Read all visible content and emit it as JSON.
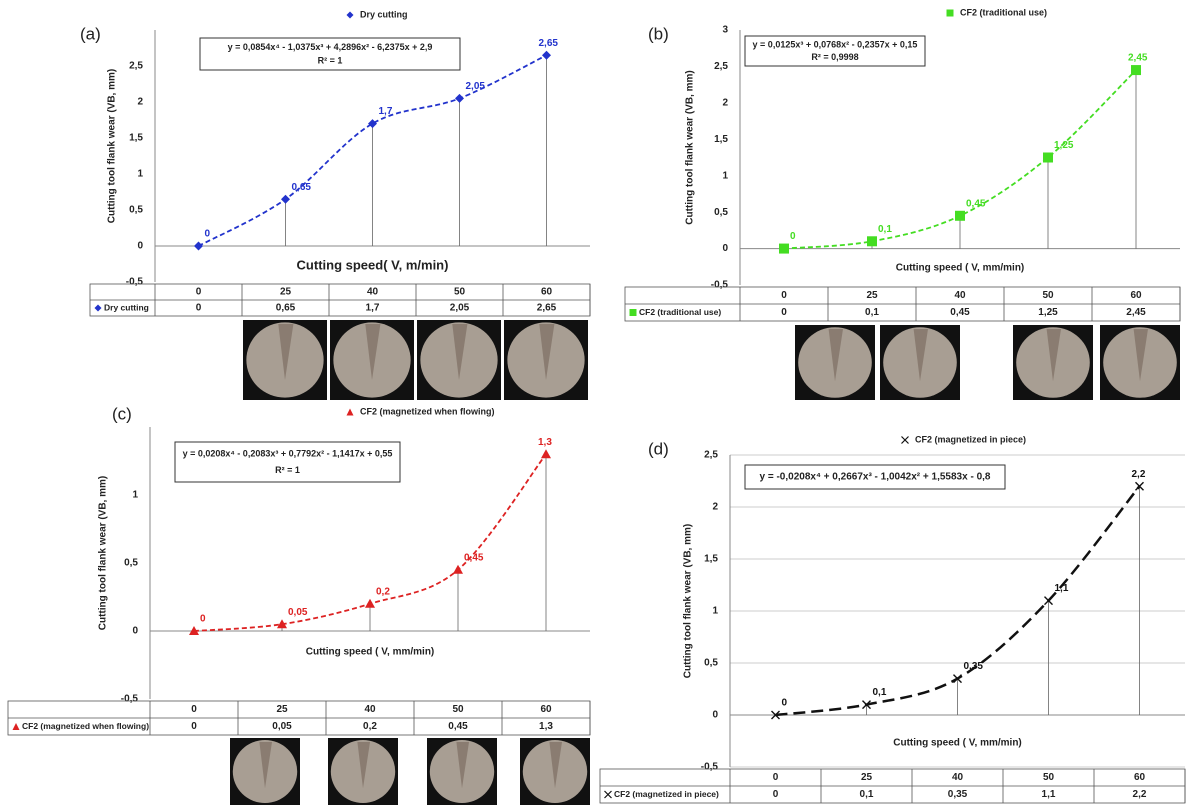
{
  "chart_data": [
    {
      "type": "line",
      "panel": "(a)",
      "title": "Dry cutting",
      "equation": "y = 0,0854x⁴ - 1,0375x³ + 4,2896x² - 6,2375x + 2,9",
      "r2": "R² = 1",
      "y_label": "Cutting tool flank wear (VB, mm)",
      "x_label": "Cutting speed( V, m/min)",
      "categories": [
        "0",
        "25",
        "40",
        "50",
        "60"
      ],
      "series": [
        {
          "name": "Dry cutting",
          "color": "#2233cc",
          "marker": "diamond",
          "values": [
            0,
            0.65,
            1.7,
            2.05,
            2.65
          ],
          "value_labels": [
            "0",
            "0,65",
            "1,7",
            "2,05",
            "2,65"
          ]
        }
      ],
      "ylim": [
        -0.5,
        3
      ],
      "yticks": [
        {
          "value": -0.5,
          "label": "-0,5"
        },
        0,
        {
          "value": 0.5,
          "label": "0,5"
        },
        1,
        {
          "value": 1.5,
          "label": "1,5"
        },
        2,
        {
          "value": 2.5,
          "label": "2,5"
        }
      ],
      "grid": false,
      "drop_lines": true
    },
    {
      "type": "line",
      "panel": "(b)",
      "title": "CF2 (traditional use)",
      "equation": "y = 0,0125x³ + 0,0768x² - 0,2357x + 0,15",
      "r2": "R² = 0,9998",
      "y_label": "Cutting tool flank wear (VB, mm)",
      "x_label": "Cutting speed ( V, mm/min)",
      "categories": [
        "0",
        "25",
        "40",
        "50",
        "60"
      ],
      "series": [
        {
          "name": "CF2 (traditional use)",
          "color": "#44dd22",
          "marker": "square",
          "values": [
            0,
            0.1,
            0.45,
            1.25,
            2.45
          ],
          "value_labels": [
            "0",
            "0,1",
            "0,45",
            "1,25",
            "2,45"
          ]
        }
      ],
      "ylim": [
        -0.5,
        3
      ],
      "yticks": [
        {
          "value": -0.5,
          "label": "-0,5"
        },
        0,
        {
          "value": 0.5,
          "label": "0,5"
        },
        1,
        {
          "value": 1.5,
          "label": "1,5"
        },
        2,
        {
          "value": 2.5,
          "label": "2,5"
        },
        3
      ],
      "grid": false,
      "drop_lines": true
    },
    {
      "type": "line",
      "panel": "(c)",
      "title": "CF2 (magnetized when flowing)",
      "equation": "y = 0,0208x⁴ - 0,2083x³ + 0,7792x² - 1,1417x + 0,55",
      "r2": "R² = 1",
      "y_label": "Cutting tool flank wear (VB, mm)",
      "x_label": "Cutting speed ( V, mm/min)",
      "categories": [
        "0",
        "25",
        "40",
        "50",
        "60"
      ],
      "series": [
        {
          "name": "CF2 (magnetized when flowing)",
          "color": "#dd2222",
          "marker": "triangle",
          "values": [
            0,
            0.05,
            0.2,
            0.45,
            1.3
          ],
          "value_labels": [
            "0",
            "0,05",
            "0,2",
            "0,45",
            "1,3"
          ]
        }
      ],
      "ylim": [
        -0.5,
        1.5
      ],
      "yticks": [
        {
          "value": -0.5,
          "label": "-0,5"
        },
        0,
        {
          "value": 0.5,
          "label": "0,5"
        },
        1
      ],
      "grid": false,
      "drop_lines": true
    },
    {
      "type": "line",
      "panel": "(d)",
      "title": "CF2 (magnetized in piece)",
      "equation": "y = -0,0208x⁴ + 0,2667x³ - 1,0042x² + 1,5583x - 0,8",
      "y_label": "Cutting tool flank wear (VB, mm)",
      "x_label": "Cutting speed ( V, mm/min)",
      "categories": [
        "0",
        "25",
        "40",
        "50",
        "60"
      ],
      "series": [
        {
          "name": "CF2 (magnetized in piece)",
          "color": "#111111",
          "marker": "cross",
          "values": [
            0,
            0.1,
            0.35,
            1.1,
            2.2
          ],
          "value_labels": [
            "0",
            "0,1",
            "0,35",
            "1,1",
            "2,2"
          ]
        }
      ],
      "ylim": [
        -0.5,
        2.5
      ],
      "yticks": [
        {
          "value": -0.5,
          "label": "-0,5"
        },
        0,
        {
          "value": 0.5,
          "label": "0,5"
        },
        1,
        {
          "value": 1.5,
          "label": "1,5"
        },
        2,
        {
          "value": 2.5,
          "label": "2,5"
        }
      ],
      "grid": true,
      "drop_lines": true
    }
  ]
}
